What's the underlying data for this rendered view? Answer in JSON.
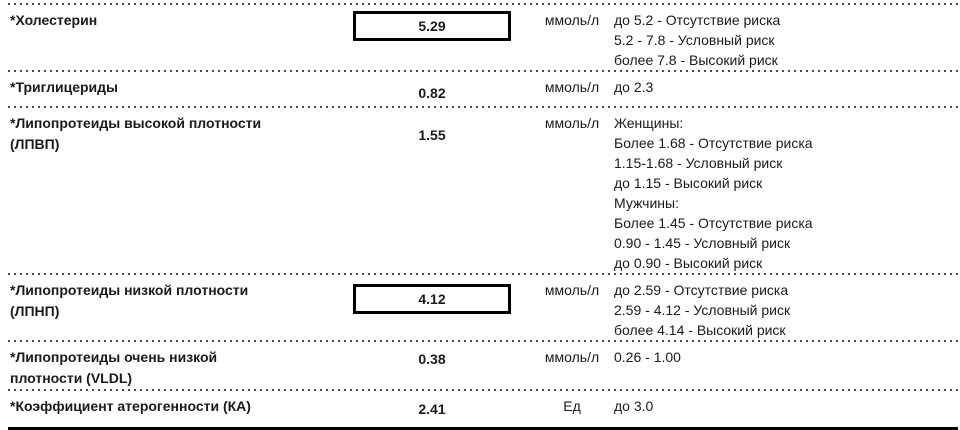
{
  "report": {
    "type": "lab-results-lipid-panel",
    "language": "ru",
    "colors": {
      "text": "#1a1a1a",
      "separator_dots": "#4a4a4a",
      "result_box_border": "#000000",
      "bottom_rule": "#000000"
    },
    "rows": [
      {
        "name": "*Холестерин",
        "value": "5.29",
        "boxed": true,
        "unit": "ммоль/л",
        "reference": "до 5.2 - Отсутствие риска\n5.2 - 7.8 - Условный риск\nболее 7.8 - Высокий риск"
      },
      {
        "name": "*Триглицериды",
        "value": "0.82",
        "boxed": false,
        "unit": "ммоль/л",
        "reference": "до 2.3"
      },
      {
        "name": "*Липопротеиды высокой плотности\n(ЛПВП)",
        "value": "1.55",
        "boxed": false,
        "unit": "ммоль/л",
        "reference": "Женщины:\nБолее 1.68 - Отсутствие риска\n1.15-1.68 - Условный риск\nдо 1.15 - Высокий риск\nМужчины:\nБолее 1.45 - Отсутствие риска\n0.90 - 1.45 - Условный риск\nдо 0.90 - Высокий риск"
      },
      {
        "name": "*Липопротеиды низкой плотности\n(ЛПНП)",
        "value": "4.12",
        "boxed": true,
        "unit": "ммоль/л",
        "reference": "до 2.59 - Отсутствие риска\n2.59 - 4.12 - Условный риск\nболее 4.14 - Высокий риск"
      },
      {
        "name": "*Липопротеиды очень низкой\nплотности (VLDL)",
        "value": "0.38",
        "boxed": false,
        "unit": "ммоль/л",
        "reference": "0.26 - 1.00"
      },
      {
        "name": "*Коэффициент атерогенности (КА)",
        "value": "2.41",
        "boxed": false,
        "unit": "Ед",
        "reference": "до 3.0"
      }
    ]
  }
}
